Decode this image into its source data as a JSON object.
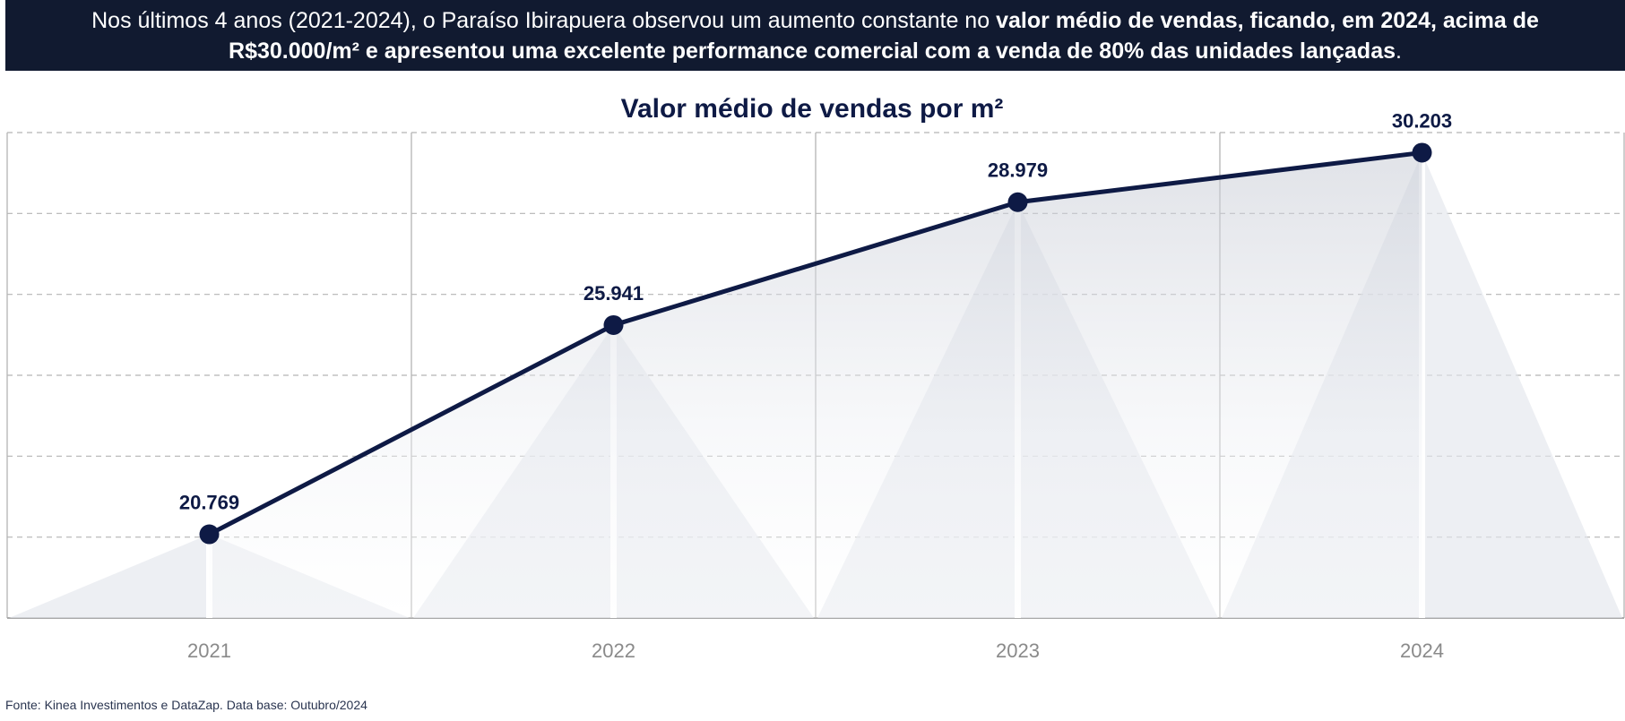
{
  "banner": {
    "line1_normal": "Nos últimos 4 anos (2021-2024), o Paraíso Ibirapuera observou um aumento constante no ",
    "line1_bold": "valor médio de vendas, ficando, em 2024, acima de",
    "line2_bold": "R$30.000/m² e apresentou uma excelente performance comercial com a venda de 80% das unidades lançadas",
    "line2_normal": "."
  },
  "source": "Fonte: Kinea Investimentos e DataZap. Data base: Outubro/2024",
  "colors": {
    "banner_bg": "#111a30",
    "line": "#0e1a45",
    "title": "#0e1a45",
    "grid": "#b4b4b4",
    "fill": "#c8ccd6"
  },
  "chart_data": {
    "type": "line",
    "title": "Valor médio de vendas por m²",
    "categories": [
      "2021",
      "2022",
      "2023",
      "2024"
    ],
    "value_labels": [
      "20.769",
      "25.941",
      "28.979",
      "30.203"
    ],
    "values": [
      20769,
      25941,
      28979,
      30203
    ],
    "xlabel": "",
    "ylabel": "",
    "ylim": [
      18700,
      30700
    ],
    "grid": true,
    "legend": "none"
  }
}
